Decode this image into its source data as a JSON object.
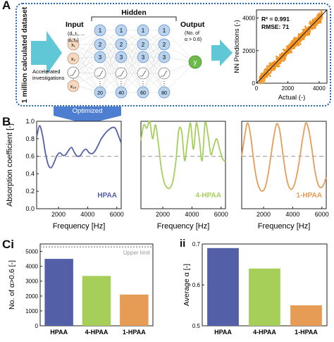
{
  "panel_labels": {
    "a": "A",
    "b": "B",
    "ci": "Ci",
    "cii": "ii"
  },
  "panel_a": {
    "side_label": "1 million calculated dataset",
    "input_title": "Input",
    "hidden_title": "Hidden",
    "output_title": "Output",
    "input_subtitle_1": "(d₁,t₁, ...",
    "input_subtitle_2": "d₆,t₆)",
    "input_nodes": [
      "x₁",
      "x₂",
      "x₃",
      "x₁₆"
    ],
    "accelerated_1": "Accelerated",
    "accelerated_2": "investigations",
    "hidden_layers": [
      {
        "top": [
          "1",
          "2",
          "3"
        ],
        "bottom": "20"
      },
      {
        "top": [
          "1",
          "2",
          "3"
        ],
        "bottom": "40"
      },
      {
        "top": [
          "1",
          "2",
          "3"
        ],
        "bottom": "60"
      },
      {
        "top": [
          "1",
          "2",
          "3"
        ],
        "bottom": "80"
      }
    ],
    "output_subtitle_1": "(No. of",
    "output_subtitle_2": "α > 0.6)",
    "output_node": "y",
    "optimized_label": "Optimized"
  },
  "colors": {
    "hpaa": "#5360a8",
    "hpaa4": "#a6cf5a",
    "hpaa1": "#e79c55",
    "scatter": "#f39322",
    "node_blue": "#b9d3ee",
    "node_orange": "#f6d9c3",
    "accent": "#4d7ed0"
  },
  "chart_data": [
    {
      "id": "scatter",
      "type": "scatter",
      "xlabel": "Actual (-)",
      "ylabel": "NN Predictions (-)",
      "xlim": [
        0,
        4500
      ],
      "ylim": [
        0,
        4500
      ],
      "xticks": [
        "0",
        "2000",
        "4000"
      ],
      "yticks": [
        "0",
        "2000",
        "4000"
      ],
      "annotation_r2": "R² = 0.991",
      "annotation_rmse": "RMSE: 71",
      "fit_line": [
        [
          0,
          0
        ],
        [
          4500,
          4500
        ]
      ]
    },
    {
      "id": "b1",
      "type": "line",
      "ylabel": "Absorption coefficient [-]",
      "xlabel": "Frequency [Hz]",
      "series_label": "HPAA",
      "xlim": [
        500,
        6300
      ],
      "ylim": [
        0.0,
        1.0
      ],
      "xticks": [
        "2000",
        "4000",
        "6000"
      ],
      "yticks": [
        "0.0",
        "0.2",
        "0.4",
        "0.6",
        "0.8",
        "1.0"
      ],
      "threshold": 0.6,
      "x": [
        500,
        700,
        900,
        1100,
        1300,
        1500,
        1700,
        1900,
        2100,
        2300,
        2500,
        2700,
        2900,
        3100,
        3300,
        3500,
        3700,
        3900,
        4100,
        4300,
        4500,
        4700,
        4900,
        5100,
        5300,
        5500,
        5700,
        5900,
        6100,
        6300
      ],
      "y": [
        0.82,
        0.95,
        0.84,
        0.64,
        0.5,
        0.47,
        0.53,
        0.61,
        0.64,
        0.61,
        0.62,
        0.67,
        0.7,
        0.64,
        0.6,
        0.61,
        0.66,
        0.68,
        0.64,
        0.63,
        0.66,
        0.72,
        0.79,
        0.84,
        0.88,
        0.91,
        0.93,
        0.92,
        0.84,
        0.75
      ]
    },
    {
      "id": "b2",
      "type": "line",
      "xlabel": "Frequency [Hz]",
      "series_label": "4-HPAA",
      "xlim": [
        500,
        6300
      ],
      "ylim": [
        0.0,
        1.0
      ],
      "xticks": [
        "2000",
        "4000",
        "6000"
      ],
      "threshold": 0.6,
      "x": [
        500,
        700,
        900,
        1100,
        1300,
        1500,
        1700,
        1900,
        2100,
        2300,
        2500,
        2700,
        2900,
        3100,
        3300,
        3500,
        3700,
        3900,
        4100,
        4300,
        4500,
        4700,
        4900,
        5100,
        5300,
        5500,
        5700,
        5900,
        6100,
        6300
      ],
      "y": [
        0.78,
        0.96,
        0.92,
        1.0,
        0.8,
        0.96,
        0.74,
        0.46,
        0.3,
        0.24,
        0.24,
        0.32,
        0.55,
        0.9,
        0.88,
        0.55,
        0.78,
        0.98,
        0.68,
        0.98,
        0.8,
        0.55,
        0.98,
        0.84,
        0.62,
        0.72,
        0.8,
        0.68,
        0.57,
        0.54
      ]
    },
    {
      "id": "b3",
      "type": "line",
      "xlabel": "Frequency [Hz]",
      "series_label": "1-HPAA",
      "xlim": [
        500,
        6300
      ],
      "ylim": [
        0.0,
        1.0
      ],
      "xticks": [
        "2000",
        "4000",
        "6000"
      ],
      "threshold": 0.6,
      "x": [
        500,
        700,
        900,
        1100,
        1300,
        1500,
        1700,
        1900,
        2100,
        2300,
        2500,
        2700,
        2900,
        3100,
        3300,
        3500,
        3700,
        3900,
        4100,
        4300,
        4500,
        4700,
        4900,
        5100,
        5300,
        5500,
        5700,
        5900,
        6100,
        6300
      ],
      "y": [
        0.6,
        0.82,
        0.98,
        0.85,
        0.58,
        0.36,
        0.24,
        0.2,
        0.24,
        0.38,
        0.6,
        0.82,
        0.97,
        0.9,
        0.66,
        0.42,
        0.27,
        0.22,
        0.27,
        0.4,
        0.6,
        0.82,
        0.98,
        0.9,
        0.7,
        0.46,
        0.3,
        0.24,
        0.27,
        0.36
      ]
    },
    {
      "id": "ci",
      "type": "bar",
      "ylabel": "No. of α>0.6 [-]",
      "categories": [
        "HPAA",
        "4-HPAA",
        "1-HPAA"
      ],
      "values": [
        4500,
        3350,
        2100
      ],
      "ylim": [
        0,
        5500
      ],
      "yticks": [
        "0",
        "1000",
        "2000",
        "3000",
        "4000",
        "5000"
      ],
      "upper_limit": 5300,
      "upper_limit_label": "Upper limit"
    },
    {
      "id": "cii",
      "type": "bar",
      "ylabel": "Average α [-]",
      "categories": [
        "HPAA",
        "4-HPAA",
        "1-HPAA"
      ],
      "values": [
        0.69,
        0.64,
        0.55
      ],
      "ylim": [
        0.5,
        0.7
      ],
      "yticks": [
        "0.5",
        "0.6",
        "0.7"
      ]
    }
  ]
}
